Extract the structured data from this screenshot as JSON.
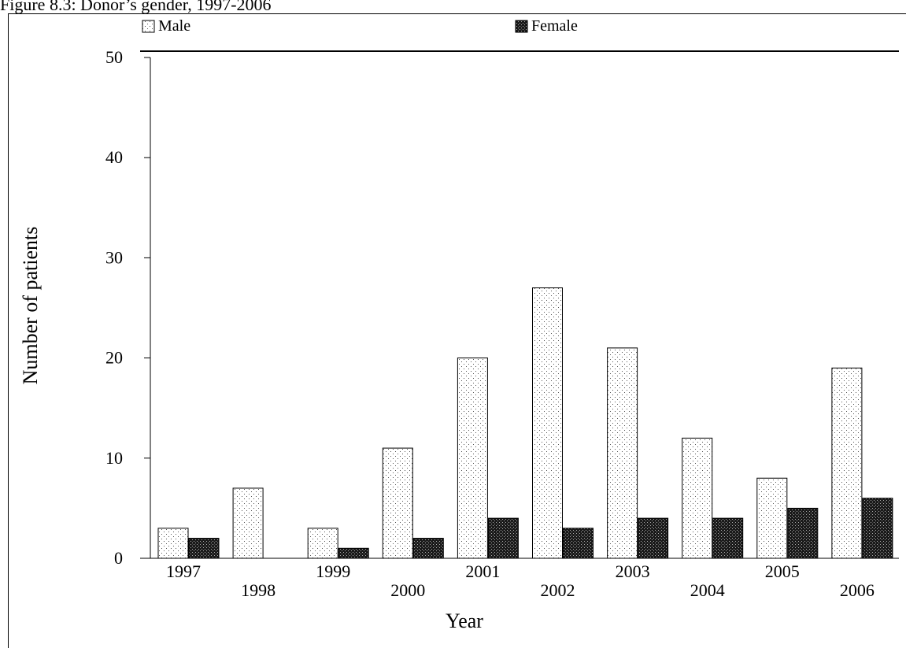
{
  "caption": "Figure 8.3: Donor’s gender, 1997-2006",
  "chart_data": {
    "type": "bar",
    "title": "Figure 8.3: Donor’s gender, 1997-2006",
    "categories": [
      "1997",
      "1998",
      "1999",
      "2000",
      "2001",
      "2002",
      "2003",
      "2004",
      "2005",
      "2006"
    ],
    "series": [
      {
        "name": "Male",
        "values": [
          3,
          7,
          3,
          11,
          20,
          27,
          21,
          12,
          8,
          19
        ],
        "pattern": "dotted"
      },
      {
        "name": "Female",
        "values": [
          2,
          0,
          1,
          2,
          4,
          3,
          4,
          4,
          5,
          6
        ],
        "pattern": "dense-checker"
      }
    ],
    "xlabel": "Year",
    "ylabel": "Number of patients",
    "ylim": [
      0,
      50
    ],
    "yticks": [
      "0",
      "10",
      "20",
      "30",
      "40",
      "50"
    ],
    "grid": false,
    "legend": "top",
    "colors": {
      "male_fill": "#ffffff",
      "male_dot": "#555555",
      "female_fill": "#1a1a1a",
      "female_dot": "#aaaaaa",
      "stroke": "#000000"
    }
  }
}
